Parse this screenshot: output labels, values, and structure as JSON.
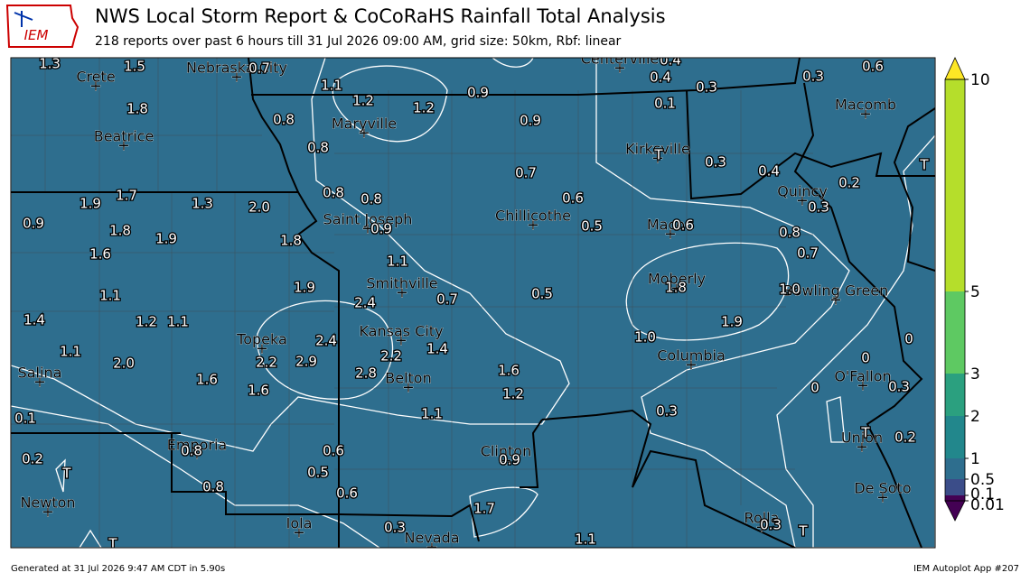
{
  "header": {
    "title": "NWS Local Storm Report & CoCoRaHS Rainfall Total Analysis",
    "subtitle": "218 reports over past 6 hours till 31 Jul 2026 09:00 AM, grid size: 50km, Rbf: linear"
  },
  "map": {
    "cities": [
      "Crete",
      "Nebraska City",
      "Beatrice",
      "Maryville",
      "Saint Joseph",
      "Chillicothe",
      "Kirksville",
      "Macon",
      "Quincy",
      "Macomb",
      "Smithville",
      "Moberly",
      "Bowling Green",
      "Kansas City",
      "Topeka",
      "Columbia",
      "O'Fallon",
      "Salina",
      "Belton",
      "Emporia",
      "Union",
      "Clinton",
      "De Soto",
      "Newton",
      "Iola",
      "Nevada",
      "Rolla",
      "Centerville"
    ],
    "reports": [
      "1.3",
      "1.5",
      "0.7",
      "1.8",
      "1.1",
      "1.2",
      "1.2",
      "0.9",
      "0.4",
      "0.4",
      "0.3",
      "0.3",
      "0.6",
      "0.1",
      "0.8",
      "0.9",
      "0.8",
      "T",
      "0.3",
      "0.4",
      "0.7",
      "0.2",
      "T",
      "0.8",
      "0.8",
      "0.6",
      "0.3",
      "1.9",
      "1.7",
      "1.3",
      "2.0",
      "0.9",
      "0.9",
      "0.5",
      "0.6",
      "1.8",
      "1.9",
      "1.8",
      "0.8",
      "0.7",
      "1.6",
      "1.1",
      "1.9",
      "1.1",
      "0.7",
      "0.5",
      "1.8",
      "1.0",
      "2.4",
      "1.2",
      "1.1",
      "1.9",
      "1.4",
      "1.0",
      "2.4",
      "1.1",
      "1.4",
      "0",
      "0",
      "2.2",
      "2.9",
      "2.2",
      "2.0",
      "1.6",
      "2.8",
      "1.6",
      "0",
      "0.3",
      "1.6",
      "1.2",
      "1.1",
      "0.3",
      "0.1",
      "T",
      "0.2",
      "0.8",
      "0.6",
      "0.9",
      "0.2",
      "T",
      "0.5",
      "0.8",
      "0.6",
      "1.7",
      "0.3",
      "0.3",
      "T",
      "1.1",
      "T"
    ]
  },
  "colorbar": {
    "ticks": [
      0.01,
      0.1,
      0.5,
      1,
      2,
      3,
      5,
      10
    ],
    "colors": [
      "#440154",
      "#3b4d89",
      "#2e6e8e",
      "#22878c",
      "#2ba07f",
      "#5ec962",
      "#b5de2b"
    ],
    "under_color": "#440154",
    "over_color": "#fde725"
  },
  "footer": {
    "left": "Generated at 31 Jul 2026 9:47 AM CDT in 5.90s",
    "right": "IEM Autoplot App #207"
  }
}
